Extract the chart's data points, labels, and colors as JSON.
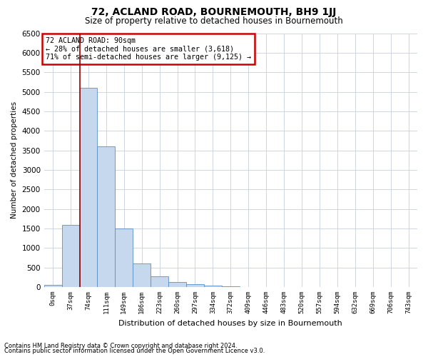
{
  "title": "72, ACLAND ROAD, BOURNEMOUTH, BH9 1JJ",
  "subtitle": "Size of property relative to detached houses in Bournemouth",
  "xlabel": "Distribution of detached houses by size in Bournemouth",
  "ylabel": "Number of detached properties",
  "footnote1": "Contains HM Land Registry data © Crown copyright and database right 2024.",
  "footnote2": "Contains public sector information licensed under the Open Government Licence v3.0.",
  "annotation_title": "72 ACLAND ROAD: 90sqm",
  "annotation_line2": "← 28% of detached houses are smaller (3,618)",
  "annotation_line3": "71% of semi-detached houses are larger (9,125) →",
  "bar_color": "#c5d8ed",
  "bar_edge_color": "#5b8ec4",
  "marker_line_color": "#990000",
  "background_color": "#ffffff",
  "grid_color": "#c8d0dc",
  "categories": [
    "0sqm",
    "37sqm",
    "74sqm",
    "111sqm",
    "149sqm",
    "186sqm",
    "223sqm",
    "260sqm",
    "297sqm",
    "334sqm",
    "372sqm",
    "409sqm",
    "446sqm",
    "483sqm",
    "520sqm",
    "557sqm",
    "594sqm",
    "632sqm",
    "669sqm",
    "706sqm",
    "743sqm"
  ],
  "bar_values": [
    50,
    1600,
    5100,
    3600,
    1500,
    600,
    270,
    120,
    80,
    30,
    20,
    0,
    0,
    0,
    0,
    0,
    0,
    0,
    0,
    0,
    0
  ],
  "ylim": [
    0,
    6500
  ],
  "yticks": [
    0,
    500,
    1000,
    1500,
    2000,
    2500,
    3000,
    3500,
    4000,
    4500,
    5000,
    5500,
    6000,
    6500
  ],
  "red_line_x": 1.5,
  "title_fontsize": 10,
  "subtitle_fontsize": 8.5
}
